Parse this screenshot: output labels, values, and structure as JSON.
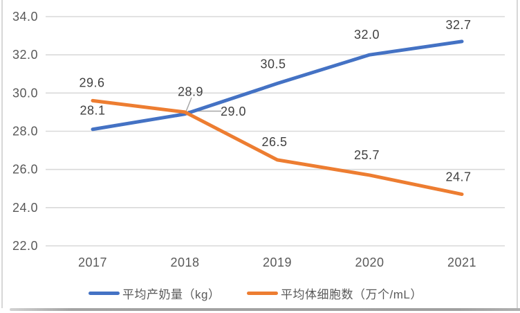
{
  "chart_data": {
    "type": "line",
    "title": "",
    "categories": [
      "2017",
      "2018",
      "2019",
      "2020",
      "2021"
    ],
    "series": [
      {
        "name": "平均产奶量（kg）",
        "color": "#4472C4",
        "values": [
          28.1,
          28.9,
          30.5,
          32.0,
          32.7
        ],
        "data_labels": [
          "28.1",
          "28.9",
          "30.5",
          "32.0",
          "32.7"
        ]
      },
      {
        "name": "平均体细胞数（万个/mL）",
        "color": "#ED7D31",
        "values": [
          29.6,
          29.0,
          26.5,
          25.7,
          24.7
        ],
        "data_labels": [
          "29.6",
          "29.0",
          "26.5",
          "25.7",
          "24.7"
        ]
      }
    ],
    "xlabel": "",
    "ylabel": "",
    "ylim": [
      22,
      34
    ],
    "ytick_step": 2,
    "ytick_labels": [
      "34.0",
      "32.0",
      "30.0",
      "28.0",
      "26.0",
      "24.0",
      "22.0"
    ],
    "grid": true,
    "legend_position": "bottom",
    "annotations": [
      {
        "series": 0,
        "index": 1,
        "label": "28.9",
        "leader": "diagonal-from-above"
      },
      {
        "series": 1,
        "index": 1,
        "label": "29.0",
        "leader": "horizontal-to-right"
      }
    ],
    "colors": {
      "gridline": "#D9D9D9",
      "axis_text": "#595959",
      "data_label_text": "#404040",
      "leader_line": "#A6A6A6",
      "background": "#FFFFFF"
    }
  }
}
